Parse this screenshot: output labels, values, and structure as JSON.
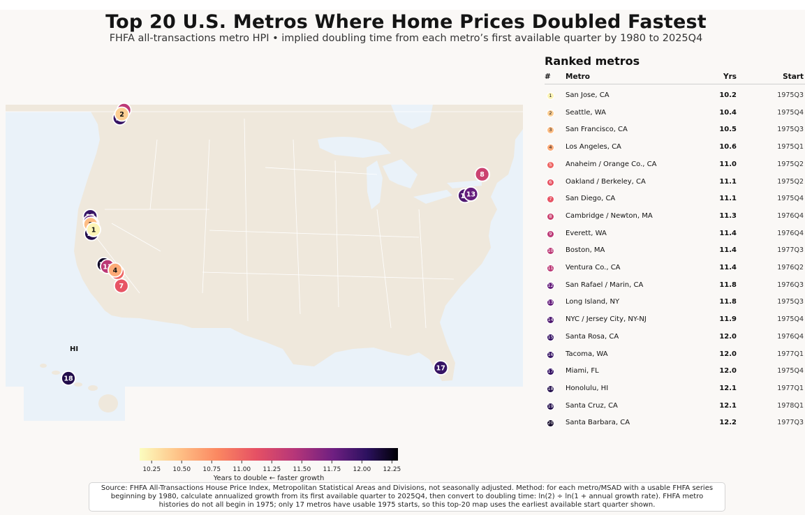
{
  "title": "Top 20 U.S. Metros Where Home Prices Doubled Fastest",
  "subtitle": "FHFA all-transactions metro HPI • implied doubling time from each metro’s first available quarter by 1980 to 2025Q4",
  "ranked_title": "Ranked metros",
  "headers": {
    "rank": "#",
    "metro": "Metro",
    "yrs": "Yrs",
    "start": "Start"
  },
  "inset_label": "HI",
  "colorbar_label": "Years to double  ← faster growth",
  "source": "Source: FHFA All-Transactions House Price Index, Metropolitan Statistical Areas and Divisions, not seasonally adjusted. Method: for each metro/MSAD with a usable FHFA series beginning by 1980, calculate annualized growth from its first available quarter to 2025Q4, then convert to doubling time: ln(2) ÷ ln(1 + annual growth rate). FHFA metro histories do not all begin in 1975; only 17 metros have usable 1975 starts, so this top-20 map uses the earliest available start quarter shown.",
  "colors": {
    "land": "#efe8dc",
    "water": "#eaf2f9",
    "state_border": "#ffffff",
    "marker_edge": "#ffffff"
  },
  "chart_data": {
    "type": "map",
    "colormap": "magma_r",
    "color_range": [
      10.15,
      12.3
    ],
    "colorbar_ticks": [
      "10.25",
      "10.50",
      "10.75",
      "11.00",
      "11.25",
      "11.50",
      "11.75",
      "12.00",
      "12.25"
    ],
    "metros": [
      {
        "rank": 1,
        "name": "San Jose, CA",
        "years": 10.2,
        "start": "1975Q3",
        "lon": -121.89,
        "lat": 37.34
      },
      {
        "rank": 2,
        "name": "Seattle, WA",
        "years": 10.4,
        "start": "1975Q4",
        "lon": -122.33,
        "lat": 47.61
      },
      {
        "rank": 3,
        "name": "San Francisco, CA",
        "years": 10.5,
        "start": "1975Q3",
        "lon": -122.42,
        "lat": 37.77
      },
      {
        "rank": 4,
        "name": "Los Angeles, CA",
        "years": 10.6,
        "start": "1975Q1",
        "lon": -118.24,
        "lat": 34.05
      },
      {
        "rank": 5,
        "name": "Anaheim / Orange Co., CA",
        "years": 11.0,
        "start": "1975Q2",
        "lon": -117.91,
        "lat": 33.84
      },
      {
        "rank": 6,
        "name": "Oakland / Berkeley, CA",
        "years": 11.1,
        "start": "1975Q2",
        "lon": -122.27,
        "lat": 37.8
      },
      {
        "rank": 7,
        "name": "San Diego, CA",
        "years": 11.1,
        "start": "1975Q4",
        "lon": -117.16,
        "lat": 32.72
      },
      {
        "rank": 8,
        "name": "Cambridge / Newton, MA",
        "years": 11.3,
        "start": "1976Q4",
        "lon": -71.11,
        "lat": 42.37
      },
      {
        "rank": 9,
        "name": "Everett, WA",
        "years": 11.4,
        "start": "1976Q4",
        "lon": -122.2,
        "lat": 47.98
      },
      {
        "rank": 10,
        "name": "Boston, MA",
        "years": 11.4,
        "start": "1977Q3",
        "lon": -71.06,
        "lat": 42.36
      },
      {
        "rank": 11,
        "name": "Ventura Co., CA",
        "years": 11.4,
        "start": "1976Q2",
        "lon": -119.23,
        "lat": 34.28
      },
      {
        "rank": 12,
        "name": "San Rafael / Marin, CA",
        "years": 11.8,
        "start": "1976Q3",
        "lon": -122.53,
        "lat": 37.97
      },
      {
        "rank": 13,
        "name": "Long Island, NY",
        "years": 11.8,
        "start": "1975Q3",
        "lon": -73.2,
        "lat": 40.79
      },
      {
        "rank": 14,
        "name": "NYC / Jersey City, NY-NJ",
        "years": 11.9,
        "start": "1975Q4",
        "lon": -74.01,
        "lat": 40.71
      },
      {
        "rank": 15,
        "name": "Santa Rosa, CA",
        "years": 12.0,
        "start": "1976Q4",
        "lon": -122.71,
        "lat": 38.44
      },
      {
        "rank": 16,
        "name": "Tacoma, WA",
        "years": 12.0,
        "start": "1977Q1",
        "lon": -122.44,
        "lat": 47.25
      },
      {
        "rank": 17,
        "name": "Miami, FL",
        "years": 12.0,
        "start": "1975Q4",
        "lon": -80.19,
        "lat": 25.76
      },
      {
        "rank": 18,
        "name": "Honolulu, HI",
        "years": 12.1,
        "start": "1977Q1",
        "lon": -157.86,
        "lat": 21.31
      },
      {
        "rank": 19,
        "name": "Santa Cruz, CA",
        "years": 12.1,
        "start": "1978Q1",
        "lon": -122.03,
        "lat": 36.97
      },
      {
        "rank": 20,
        "name": "Santa Barbara, CA",
        "years": 12.2,
        "start": "1977Q3",
        "lon": -119.7,
        "lat": 34.42
      }
    ]
  }
}
